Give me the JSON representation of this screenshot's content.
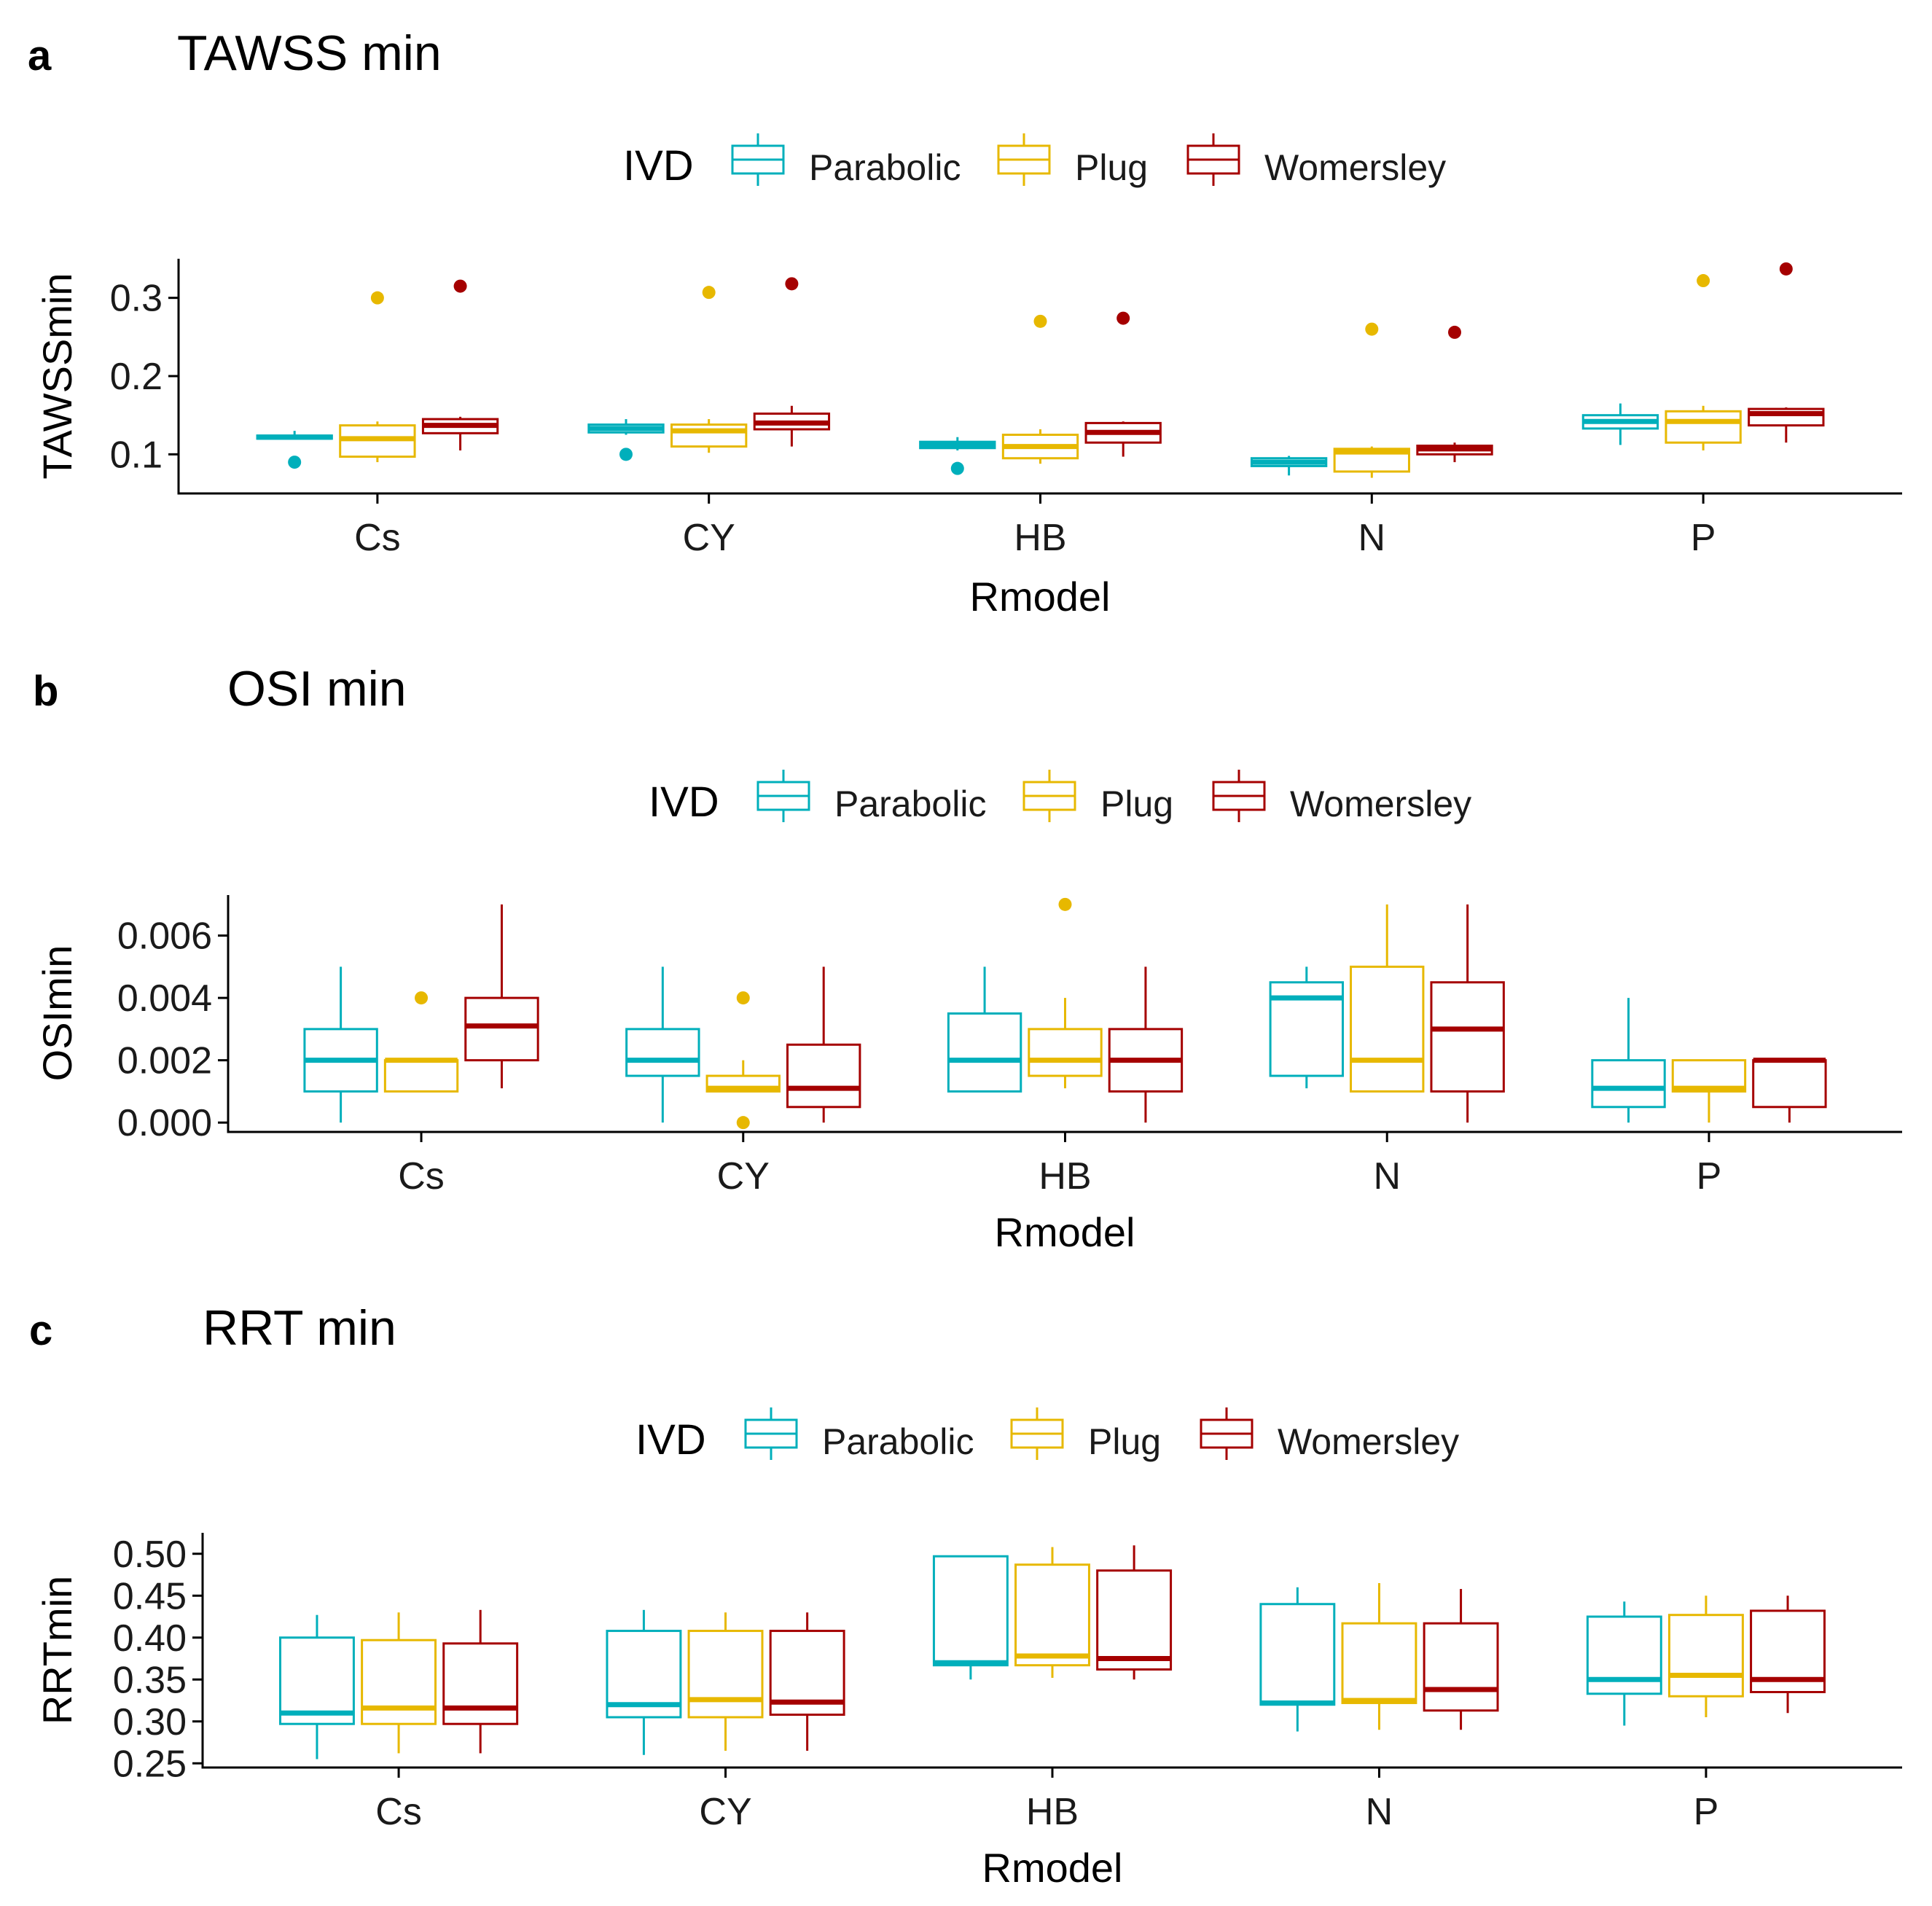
{
  "legend": {
    "title": "IVD",
    "items": [
      {
        "label": "Parabolic",
        "color": "#00AFBB"
      },
      {
        "label": "Plug",
        "color": "#E7B800"
      },
      {
        "label": "Womersley",
        "color": "#A50000"
      }
    ]
  },
  "chart_data": [
    {
      "type": "boxplot",
      "panel_letter": "a",
      "title": "TAWSS min",
      "xlabel": "Rmodel",
      "ylabel": "TAWSSmin",
      "ylim": [
        0.05,
        0.35
      ],
      "yticks": [
        0.1,
        0.2,
        0.3
      ],
      "ytick_labels": [
        "0.1",
        "0.2",
        "0.3"
      ],
      "categories": [
        "Cs",
        "CY",
        "HB",
        "N",
        "P"
      ],
      "series": [
        {
          "name": "Parabolic",
          "boxes": [
            {
              "min": 0.12,
              "q1": 0.12,
              "median": 0.122,
              "q3": 0.124,
              "max": 0.13,
              "outliers": [
                0.09
              ]
            },
            {
              "min": 0.125,
              "q1": 0.128,
              "median": 0.133,
              "q3": 0.138,
              "max": 0.145,
              "outliers": [
                0.1
              ]
            },
            {
              "min": 0.105,
              "q1": 0.108,
              "median": 0.112,
              "q3": 0.116,
              "max": 0.122,
              "outliers": [
                0.082
              ]
            },
            {
              "min": 0.073,
              "q1": 0.085,
              "median": 0.09,
              "q3": 0.095,
              "max": 0.098,
              "outliers": []
            },
            {
              "min": 0.112,
              "q1": 0.133,
              "median": 0.142,
              "q3": 0.15,
              "max": 0.165,
              "outliers": []
            }
          ]
        },
        {
          "name": "Plug",
          "boxes": [
            {
              "min": 0.09,
              "q1": 0.097,
              "median": 0.12,
              "q3": 0.137,
              "max": 0.142,
              "outliers": [
                0.3
              ]
            },
            {
              "min": 0.102,
              "q1": 0.11,
              "median": 0.13,
              "q3": 0.138,
              "max": 0.145,
              "outliers": [
                0.307
              ]
            },
            {
              "min": 0.088,
              "q1": 0.095,
              "median": 0.11,
              "q3": 0.125,
              "max": 0.132,
              "outliers": [
                0.27
              ]
            },
            {
              "min": 0.07,
              "q1": 0.078,
              "median": 0.103,
              "q3": 0.107,
              "max": 0.11,
              "outliers": [
                0.26
              ]
            },
            {
              "min": 0.105,
              "q1": 0.115,
              "median": 0.142,
              "q3": 0.155,
              "max": 0.162,
              "outliers": [
                0.322
              ]
            }
          ]
        },
        {
          "name": "Womersley",
          "boxes": [
            {
              "min": 0.105,
              "q1": 0.127,
              "median": 0.137,
              "q3": 0.145,
              "max": 0.148,
              "outliers": [
                0.315
              ]
            },
            {
              "min": 0.11,
              "q1": 0.132,
              "median": 0.14,
              "q3": 0.152,
              "max": 0.162,
              "outliers": [
                0.318
              ]
            },
            {
              "min": 0.097,
              "q1": 0.115,
              "median": 0.128,
              "q3": 0.14,
              "max": 0.142,
              "outliers": [
                0.274
              ]
            },
            {
              "min": 0.09,
              "q1": 0.1,
              "median": 0.107,
              "q3": 0.111,
              "max": 0.115,
              "outliers": [
                0.256
              ]
            },
            {
              "min": 0.115,
              "q1": 0.137,
              "median": 0.152,
              "q3": 0.158,
              "max": 0.16,
              "outliers": [
                0.337
              ]
            }
          ]
        }
      ]
    },
    {
      "type": "boxplot",
      "panel_letter": "b",
      "title": "OSI min",
      "xlabel": "Rmodel",
      "ylabel": "OSImin",
      "ylim": [
        -0.0003,
        0.0073
      ],
      "yticks": [
        0.0,
        0.002,
        0.004,
        0.006
      ],
      "ytick_labels": [
        "0.000",
        "0.002",
        "0.004",
        "0.006"
      ],
      "categories": [
        "Cs",
        "CY",
        "HB",
        "N",
        "P"
      ],
      "series": [
        {
          "name": "Parabolic",
          "boxes": [
            {
              "min": 0.0,
              "q1": 0.001,
              "median": 0.002,
              "q3": 0.003,
              "max": 0.005,
              "outliers": []
            },
            {
              "min": 0.0,
              "q1": 0.0015,
              "median": 0.002,
              "q3": 0.003,
              "max": 0.005,
              "outliers": []
            },
            {
              "min": 0.001,
              "q1": 0.001,
              "median": 0.002,
              "q3": 0.0035,
              "max": 0.005,
              "outliers": []
            },
            {
              "min": 0.0011,
              "q1": 0.0015,
              "median": 0.004,
              "q3": 0.0045,
              "max": 0.005,
              "outliers": []
            },
            {
              "min": 0.0,
              "q1": 0.0005,
              "median": 0.0011,
              "q3": 0.002,
              "max": 0.004,
              "outliers": []
            }
          ]
        },
        {
          "name": "Plug",
          "boxes": [
            {
              "min": 0.001,
              "q1": 0.001,
              "median": 0.002,
              "q3": 0.002,
              "max": 0.002,
              "outliers": [
                0.004
              ]
            },
            {
              "min": 0.001,
              "q1": 0.001,
              "median": 0.0011,
              "q3": 0.0015,
              "max": 0.002,
              "outliers": [
                0.004,
                0.0
              ]
            },
            {
              "min": 0.0011,
              "q1": 0.0015,
              "median": 0.002,
              "q3": 0.003,
              "max": 0.004,
              "outliers": [
                0.007
              ]
            },
            {
              "min": 0.001,
              "q1": 0.001,
              "median": 0.002,
              "q3": 0.005,
              "max": 0.007,
              "outliers": []
            },
            {
              "min": 0.0,
              "q1": 0.001,
              "median": 0.0011,
              "q3": 0.002,
              "max": 0.002,
              "outliers": []
            }
          ]
        },
        {
          "name": "Womersley",
          "boxes": [
            {
              "min": 0.0011,
              "q1": 0.002,
              "median": 0.0031,
              "q3": 0.004,
              "max": 0.007,
              "outliers": []
            },
            {
              "min": 0.0,
              "q1": 0.0005,
              "median": 0.0011,
              "q3": 0.0025,
              "max": 0.005,
              "outliers": []
            },
            {
              "min": 0.0,
              "q1": 0.001,
              "median": 0.002,
              "q3": 0.003,
              "max": 0.005,
              "outliers": []
            },
            {
              "min": 0.0,
              "q1": 0.001,
              "median": 0.003,
              "q3": 0.0045,
              "max": 0.007,
              "outliers": []
            },
            {
              "min": 0.0,
              "q1": 0.0005,
              "median": 0.002,
              "q3": 0.002,
              "max": 0.002,
              "outliers": []
            }
          ]
        }
      ]
    },
    {
      "type": "boxplot",
      "panel_letter": "c",
      "title": "RRT min",
      "xlabel": "Rmodel",
      "ylabel": "RRTmin",
      "ylim": [
        0.245,
        0.525
      ],
      "yticks": [
        0.25,
        0.3,
        0.35,
        0.4,
        0.45,
        0.5
      ],
      "ytick_labels": [
        "0.25",
        "0.30",
        "0.35",
        "0.40",
        "0.45",
        "0.50"
      ],
      "categories": [
        "Cs",
        "CY",
        "HB",
        "N",
        "P"
      ],
      "series": [
        {
          "name": "Parabolic",
          "boxes": [
            {
              "min": 0.255,
              "q1": 0.297,
              "median": 0.31,
              "q3": 0.4,
              "max": 0.427,
              "outliers": []
            },
            {
              "min": 0.26,
              "q1": 0.305,
              "median": 0.32,
              "q3": 0.408,
              "max": 0.433,
              "outliers": []
            },
            {
              "min": 0.35,
              "q1": 0.367,
              "median": 0.37,
              "q3": 0.497,
              "max": 0.497,
              "outliers": []
            },
            {
              "min": 0.288,
              "q1": 0.32,
              "median": 0.322,
              "q3": 0.44,
              "max": 0.46,
              "outliers": []
            },
            {
              "min": 0.295,
              "q1": 0.333,
              "median": 0.35,
              "q3": 0.425,
              "max": 0.443,
              "outliers": []
            }
          ]
        },
        {
          "name": "Plug",
          "boxes": [
            {
              "min": 0.262,
              "q1": 0.297,
              "median": 0.316,
              "q3": 0.397,
              "max": 0.43,
              "outliers": []
            },
            {
              "min": 0.265,
              "q1": 0.305,
              "median": 0.326,
              "q3": 0.408,
              "max": 0.43,
              "outliers": []
            },
            {
              "min": 0.352,
              "q1": 0.367,
              "median": 0.378,
              "q3": 0.487,
              "max": 0.508,
              "outliers": []
            },
            {
              "min": 0.29,
              "q1": 0.322,
              "median": 0.325,
              "q3": 0.417,
              "max": 0.465,
              "outliers": []
            },
            {
              "min": 0.305,
              "q1": 0.33,
              "median": 0.355,
              "q3": 0.427,
              "max": 0.45,
              "outliers": []
            }
          ]
        },
        {
          "name": "Womersley",
          "boxes": [
            {
              "min": 0.262,
              "q1": 0.297,
              "median": 0.316,
              "q3": 0.393,
              "max": 0.433,
              "outliers": []
            },
            {
              "min": 0.265,
              "q1": 0.308,
              "median": 0.323,
              "q3": 0.408,
              "max": 0.43,
              "outliers": []
            },
            {
              "min": 0.35,
              "q1": 0.362,
              "median": 0.375,
              "q3": 0.48,
              "max": 0.51,
              "outliers": []
            },
            {
              "min": 0.29,
              "q1": 0.313,
              "median": 0.338,
              "q3": 0.417,
              "max": 0.458,
              "outliers": []
            },
            {
              "min": 0.31,
              "q1": 0.335,
              "median": 0.35,
              "q3": 0.432,
              "max": 0.45,
              "outliers": []
            }
          ]
        }
      ]
    }
  ]
}
